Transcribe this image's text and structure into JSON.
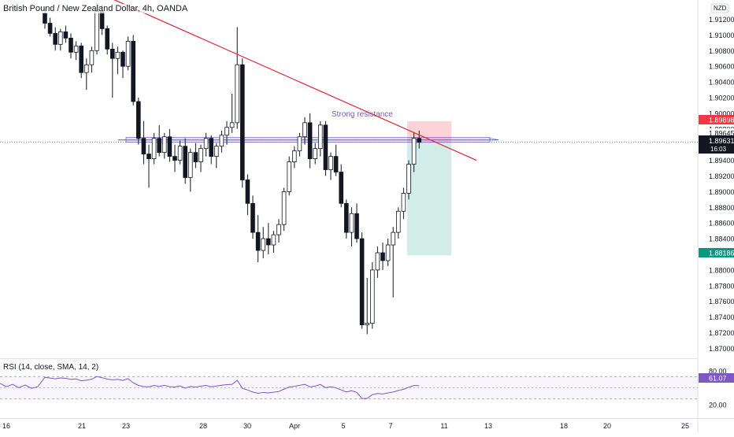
{
  "header": {
    "title": "British Pound / New Zealand Dollar, 4h, OANDA",
    "currency": "NZD"
  },
  "annotations": {
    "resistance_text": "Strong resistance"
  },
  "price_axis": {
    "ticks": [
      "1.91200",
      "1.91000",
      "1.90800",
      "1.90600",
      "1.90400",
      "1.90200",
      "1.90000",
      "1.89800",
      "1.89600",
      "1.89400",
      "1.89200",
      "1.89000",
      "1.88800",
      "1.88600",
      "1.88400",
      "1.88200",
      "1.88000",
      "1.87800",
      "1.87600",
      "1.87400",
      "1.87200",
      "1.87000"
    ],
    "badges": {
      "target": "1.89898",
      "resistance": "1.89645",
      "last_price": "1.89631",
      "countdown": "16:03",
      "stop": "1.88186"
    },
    "colors": {
      "target": "#f23645",
      "stop": "#089981",
      "last": "#131722"
    }
  },
  "time_axis": {
    "ticks": [
      "16",
      "21",
      "23",
      "28",
      "30",
      "Apr",
      "5",
      "7",
      "11",
      "13",
      "18",
      "20",
      "25"
    ]
  },
  "rsi": {
    "label": "RSI (14, close, SMA, 14, 2)",
    "ticks": [
      "80.00",
      "20.00"
    ],
    "value": "61.07",
    "color": "#7e57c2"
  },
  "chart_data": {
    "type": "candlestick",
    "symbol": "GBPNZD",
    "timeframe": "4h",
    "price_range": [
      1.8685,
      1.914
    ],
    "candles": [
      [
        1.9128,
        1.9135,
        1.9108,
        1.9115
      ],
      [
        1.9115,
        1.9122,
        1.9098,
        1.9102
      ],
      [
        1.9102,
        1.911,
        1.908,
        1.9088
      ],
      [
        1.9088,
        1.9108,
        1.908,
        1.9104
      ],
      [
        1.9104,
        1.9112,
        1.909,
        1.9096
      ],
      [
        1.9096,
        1.9102,
        1.907,
        1.9078
      ],
      [
        1.9078,
        1.9092,
        1.9068,
        1.9086
      ],
      [
        1.9086,
        1.909,
        1.9045,
        1.9052
      ],
      [
        1.9052,
        1.907,
        1.903,
        1.9062
      ],
      [
        1.9062,
        1.9085,
        1.9052,
        1.908
      ],
      [
        1.908,
        1.914,
        1.9075,
        1.913
      ],
      [
        1.913,
        1.9138,
        1.91,
        1.9108
      ],
      [
        1.9108,
        1.9112,
        1.9075,
        1.9082
      ],
      [
        1.9082,
        1.909,
        1.902,
        1.907
      ],
      [
        1.907,
        1.9085,
        1.905,
        1.9078
      ],
      [
        1.9078,
        1.908,
        1.9045,
        1.906
      ],
      [
        1.906,
        1.9098,
        1.9055,
        1.9092
      ],
      [
        1.9092,
        1.91,
        1.901,
        1.9015
      ],
      [
        1.9015,
        1.902,
        1.896,
        1.8968
      ],
      [
        1.8968,
        1.899,
        1.8935,
        1.8948
      ],
      [
        1.8948,
        1.896,
        1.8905,
        1.8942
      ],
      [
        1.8942,
        1.8975,
        1.8935,
        1.8968
      ],
      [
        1.8968,
        1.8985,
        1.8945,
        1.895
      ],
      [
        1.895,
        1.8975,
        1.8942,
        1.897
      ],
      [
        1.897,
        1.898,
        1.8938,
        1.8945
      ],
      [
        1.8945,
        1.896,
        1.8925,
        1.894
      ],
      [
        1.894,
        1.8965,
        1.8935,
        1.8958
      ],
      [
        1.8958,
        1.8968,
        1.891,
        1.8918
      ],
      [
        1.8918,
        1.8955,
        1.89,
        1.895
      ],
      [
        1.895,
        1.8962,
        1.893,
        1.8938
      ],
      [
        1.8938,
        1.896,
        1.8925,
        1.8955
      ],
      [
        1.8955,
        1.8975,
        1.8945,
        1.8968
      ],
      [
        1.8968,
        1.8972,
        1.8935,
        1.8945
      ],
      [
        1.8945,
        1.8962,
        1.893,
        1.8958
      ],
      [
        1.8958,
        1.8978,
        1.895,
        1.8972
      ],
      [
        1.8972,
        1.899,
        1.896,
        1.8982
      ],
      [
        1.8982,
        1.9025,
        1.8975,
        1.8988
      ],
      [
        1.8988,
        1.911,
        1.898,
        1.9062
      ],
      [
        1.9062,
        1.907,
        1.8905,
        1.8915
      ],
      [
        1.8915,
        1.8922,
        1.887,
        1.8885
      ],
      [
        1.8885,
        1.8895,
        1.884,
        1.8848
      ],
      [
        1.8848,
        1.887,
        1.881,
        1.8825
      ],
      [
        1.8825,
        1.8855,
        1.8815,
        1.884
      ],
      [
        1.884,
        1.886,
        1.882,
        1.8832
      ],
      [
        1.8832,
        1.885,
        1.8822,
        1.8845
      ],
      [
        1.8845,
        1.8865,
        1.8835,
        1.8858
      ],
      [
        1.8858,
        1.8905,
        1.885,
        1.89
      ],
      [
        1.89,
        1.8945,
        1.8895,
        1.8938
      ],
      [
        1.8938,
        1.8958,
        1.893,
        1.8952
      ],
      [
        1.8952,
        1.8975,
        1.8945,
        1.897
      ],
      [
        1.897,
        1.8995,
        1.896,
        1.8988
      ],
      [
        1.8988,
        1.9,
        1.893,
        1.8942
      ],
      [
        1.8942,
        1.8962,
        1.8935,
        1.8955
      ],
      [
        1.8955,
        1.899,
        1.8945,
        1.8985
      ],
      [
        1.8985,
        1.899,
        1.892,
        1.8928
      ],
      [
        1.8928,
        1.895,
        1.8915,
        1.8945
      ],
      [
        1.8945,
        1.896,
        1.892,
        1.8925
      ],
      [
        1.8925,
        1.8935,
        1.888,
        1.8885
      ],
      [
        1.8885,
        1.889,
        1.884,
        1.8848
      ],
      [
        1.8848,
        1.888,
        1.883,
        1.8872
      ],
      [
        1.8872,
        1.8885,
        1.8835,
        1.884
      ],
      [
        1.884,
        1.8848,
        1.8725,
        1.873
      ],
      [
        1.873,
        1.879,
        1.8718,
        1.8732
      ],
      [
        1.8732,
        1.881,
        1.8725,
        1.88
      ],
      [
        1.88,
        1.883,
        1.879,
        1.8822
      ],
      [
        1.8822,
        1.8835,
        1.88,
        1.8812
      ],
      [
        1.8812,
        1.884,
        1.8805,
        1.8832
      ],
      [
        1.8832,
        1.8855,
        1.8765,
        1.8848
      ],
      [
        1.8848,
        1.888,
        1.884,
        1.8875
      ],
      [
        1.8875,
        1.8905,
        1.8865,
        1.8898
      ],
      [
        1.8898,
        1.894,
        1.889,
        1.8935
      ],
      [
        1.8935,
        1.8975,
        1.8925,
        1.8968
      ],
      [
        1.8968,
        1.8978,
        1.8955,
        1.8963
      ]
    ],
    "trendline": {
      "from": [
        -2,
        1.919
      ],
      "to": [
        80,
        1.894
      ]
    },
    "resistance_zone": [
      1.8964,
      1.8968
    ],
    "position": {
      "entry": 1.89631,
      "target": 1.89898,
      "stop": 1.88186
    }
  }
}
